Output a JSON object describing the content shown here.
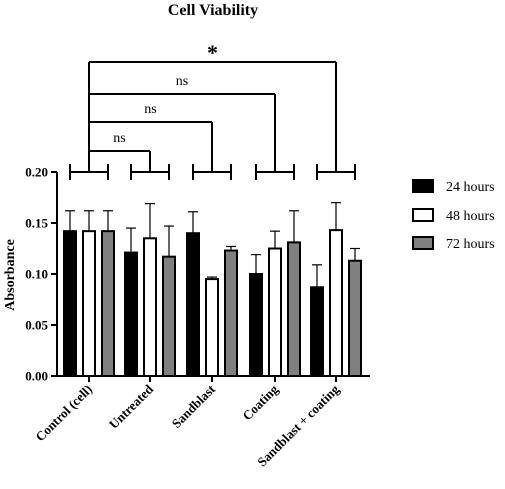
{
  "chart_data": {
    "type": "bar",
    "title": "Cell Viability",
    "xlabel": "",
    "ylabel": "Absorbance",
    "ylim": [
      0,
      0.2
    ],
    "yticks": [
      "0.00",
      "0.05",
      "0.10",
      "0.15",
      "0.20"
    ],
    "categories": [
      "Control (cell)",
      "Untreated",
      "Sandblast",
      "Coating",
      "Sandblast + coating"
    ],
    "series": [
      {
        "name": "24 hours",
        "color": "#000000",
        "values": [
          0.142,
          0.121,
          0.14,
          0.1,
          0.087
        ],
        "errors": [
          0.02,
          0.024,
          0.021,
          0.019,
          0.022
        ]
      },
      {
        "name": "48 hours",
        "color": "#ffffff",
        "values": [
          0.142,
          0.135,
          0.095,
          0.125,
          0.143
        ],
        "errors": [
          0.02,
          0.034,
          0.002,
          0.017,
          0.027
        ]
      },
      {
        "name": "72 hours",
        "color": "#808080",
        "values": [
          0.142,
          0.117,
          0.123,
          0.131,
          0.113
        ],
        "errors": [
          0.02,
          0.03,
          0.004,
          0.031,
          0.012
        ]
      }
    ],
    "legend_position": "right",
    "significance": [
      {
        "from": "Control (cell)",
        "to": "Untreated",
        "label": "ns"
      },
      {
        "from": "Control (cell)",
        "to": "Sandblast",
        "label": "ns"
      },
      {
        "from": "Control (cell)",
        "to": "Coating",
        "label": "ns"
      },
      {
        "from": "Control (cell)",
        "to": "Sandblast + coating",
        "label": "*"
      }
    ]
  }
}
